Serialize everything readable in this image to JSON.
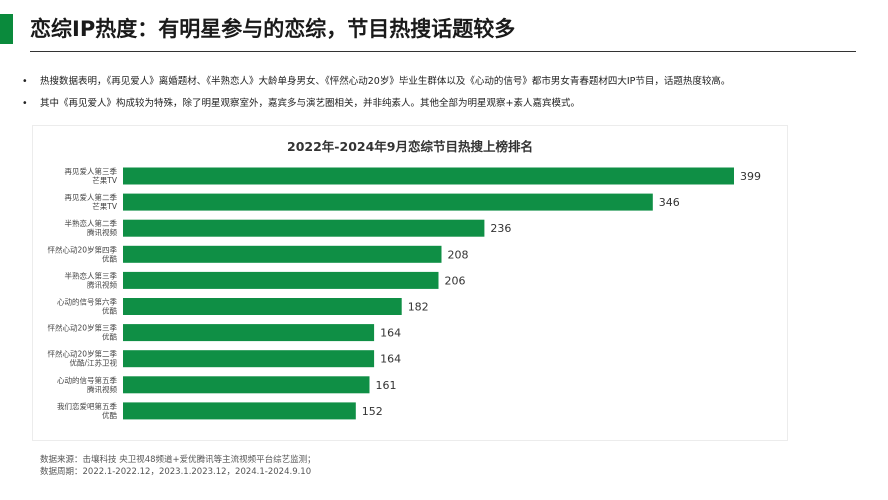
{
  "header": {
    "title": "恋综IP热度：有明星参与的恋综，节目热搜话题较多",
    "accent_color": "#0a8a3c"
  },
  "bullets": [
    {
      "marker": "•",
      "text": "热搜数据表明，《再见爱人》离婚题材、《半熟恋人》大龄单身男女、《怦然心动20岁》毕业生群体以及《心动的信号》都市男女青春题材四大IP节目，话题热度较高。"
    },
    {
      "marker": "•",
      "text": "其中《再见爱人》构成较为特殊，除了明星观察室外，嘉宾多与演艺圈相关，并非纯素人。其他全部为明星观察+素人嘉宾模式。"
    }
  ],
  "chart_data": {
    "type": "bar",
    "orientation": "horizontal",
    "title": "2022年-2024年9月恋综节目热搜上榜排名",
    "categories": [
      [
        "再见爱人第三季",
        "芒果TV"
      ],
      [
        "再见爱人第二季",
        "芒果TV"
      ],
      [
        "半熟恋人第二季",
        "腾讯视频"
      ],
      [
        "怦然心动20岁第四季",
        "优酷"
      ],
      [
        "半熟恋人第三季",
        "腾讯视频"
      ],
      [
        "心动的信号第六季",
        "优酷"
      ],
      [
        "怦然心动20岁第三季",
        "优酷"
      ],
      [
        "怦然心动20岁第二季",
        "优酷/江苏卫视"
      ],
      [
        "心动的信号第五季",
        "腾讯视频"
      ],
      [
        "我们恋爱吧第五季",
        "优酷"
      ]
    ],
    "values": [
      399,
      346,
      236,
      208,
      206,
      182,
      164,
      164,
      161,
      152
    ],
    "bar_color": "#0f8f45",
    "xlim": [
      0,
      420
    ],
    "grid": false,
    "data_labels": true
  },
  "footer": {
    "source": "数据来源：击壤科技  央卫视48频道+爱优腾讯等主流视频平台综艺监测；",
    "period": "数据周期：2022.1-2022.12，2023.1.2023.12，2024.1-2024.9.10"
  }
}
